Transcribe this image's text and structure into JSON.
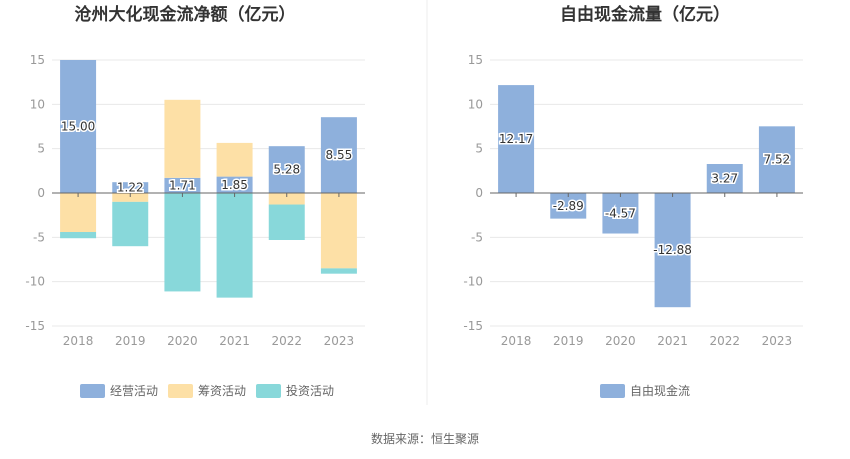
{
  "chart_data": [
    {
      "type": "bar",
      "stacked": true,
      "title": "沧州大化现金流净额（亿元）",
      "categories": [
        "2018",
        "2019",
        "2020",
        "2021",
        "2022",
        "2023"
      ],
      "ylim": [
        -15,
        15
      ],
      "yticks": [
        -15,
        -10,
        -5,
        0,
        5,
        10,
        15
      ],
      "grid": true,
      "legend_position": "bottom",
      "series": [
        {
          "name": "经营活动",
          "color": "#8eb0dc",
          "values": [
            15.0,
            1.22,
            1.71,
            1.85,
            5.28,
            8.55
          ],
          "labels": [
            "15.00",
            "1.22",
            "1.71",
            "1.85",
            "5.28",
            "8.55"
          ]
        },
        {
          "name": "筹资活动",
          "color": "#fde0a6",
          "values": [
            -4.4,
            -1.0,
            8.8,
            3.8,
            -1.3,
            -8.5
          ]
        },
        {
          "name": "投资活动",
          "color": "#88d8da",
          "values": [
            -0.7,
            -5.0,
            -11.1,
            -11.8,
            -4.0,
            -0.6
          ]
        }
      ]
    },
    {
      "type": "bar",
      "title": "自由现金流量（亿元）",
      "categories": [
        "2018",
        "2019",
        "2020",
        "2021",
        "2022",
        "2023"
      ],
      "ylim": [
        -15,
        15
      ],
      "yticks": [
        -15,
        -10,
        -5,
        0,
        5,
        10,
        15
      ],
      "grid": true,
      "legend_position": "bottom",
      "series": [
        {
          "name": "自由现金流",
          "color": "#8eb0dc",
          "values": [
            12.17,
            -2.89,
            -4.57,
            -12.88,
            3.27,
            7.52
          ],
          "labels": [
            "12.17",
            "-2.89",
            "-4.57",
            "-12.88",
            "3.27",
            "7.52"
          ]
        }
      ]
    }
  ],
  "footer": {
    "source": "数据来源：恒生聚源"
  },
  "colors": {
    "grid": "#e8e8e8",
    "axis": "#666666",
    "divider": "#eeeeee"
  }
}
